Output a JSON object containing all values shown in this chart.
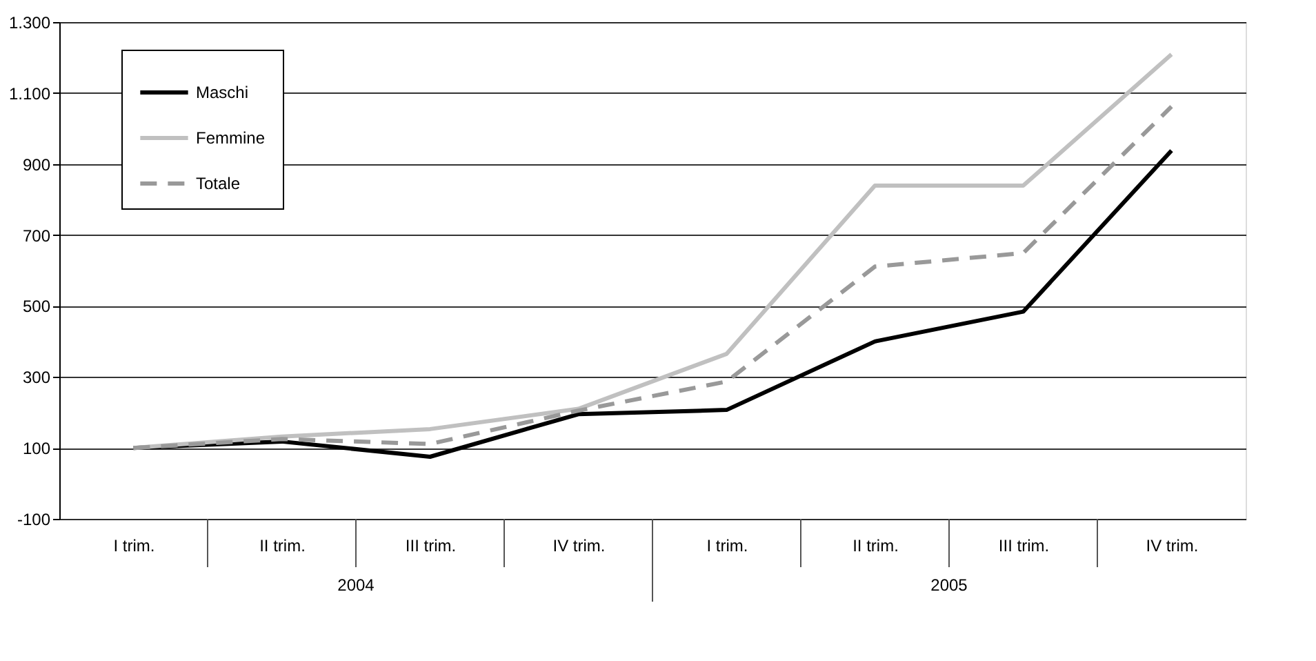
{
  "chart_data": {
    "type": "line",
    "categories": [
      "I trim.",
      "II trim.",
      "III trim.",
      "IV trim.",
      "I trim.",
      "II trim.",
      "III trim.",
      "IV trim."
    ],
    "series": [
      {
        "name": "Maschi",
        "color": "#000000",
        "line_style": "solid",
        "values": [
          100,
          118,
          75,
          195,
          207,
          400,
          484,
          938
        ]
      },
      {
        "name": "Femmine",
        "color": "#c0c0c0",
        "line_style": "solid",
        "values": [
          100,
          132,
          153,
          210,
          365,
          839,
          839,
          1209
        ]
      },
      {
        "name": "Totale",
        "color": "#999999",
        "line_style": "dashed",
        "values": [
          100,
          125,
          111,
          205,
          287,
          611,
          649,
          1062
        ]
      }
    ],
    "annotations": [
      "2004",
      "2005"
    ],
    "ylim": [
      -100,
      1300
    ],
    "yticks": [
      -100,
      100,
      300,
      500,
      700,
      900,
      {
        "value": 1100,
        "label": "1.100"
      },
      {
        "value": 1300,
        "label": "1.300"
      }
    ],
    "grid": "y",
    "legend": "top left",
    "marker": "none"
  }
}
